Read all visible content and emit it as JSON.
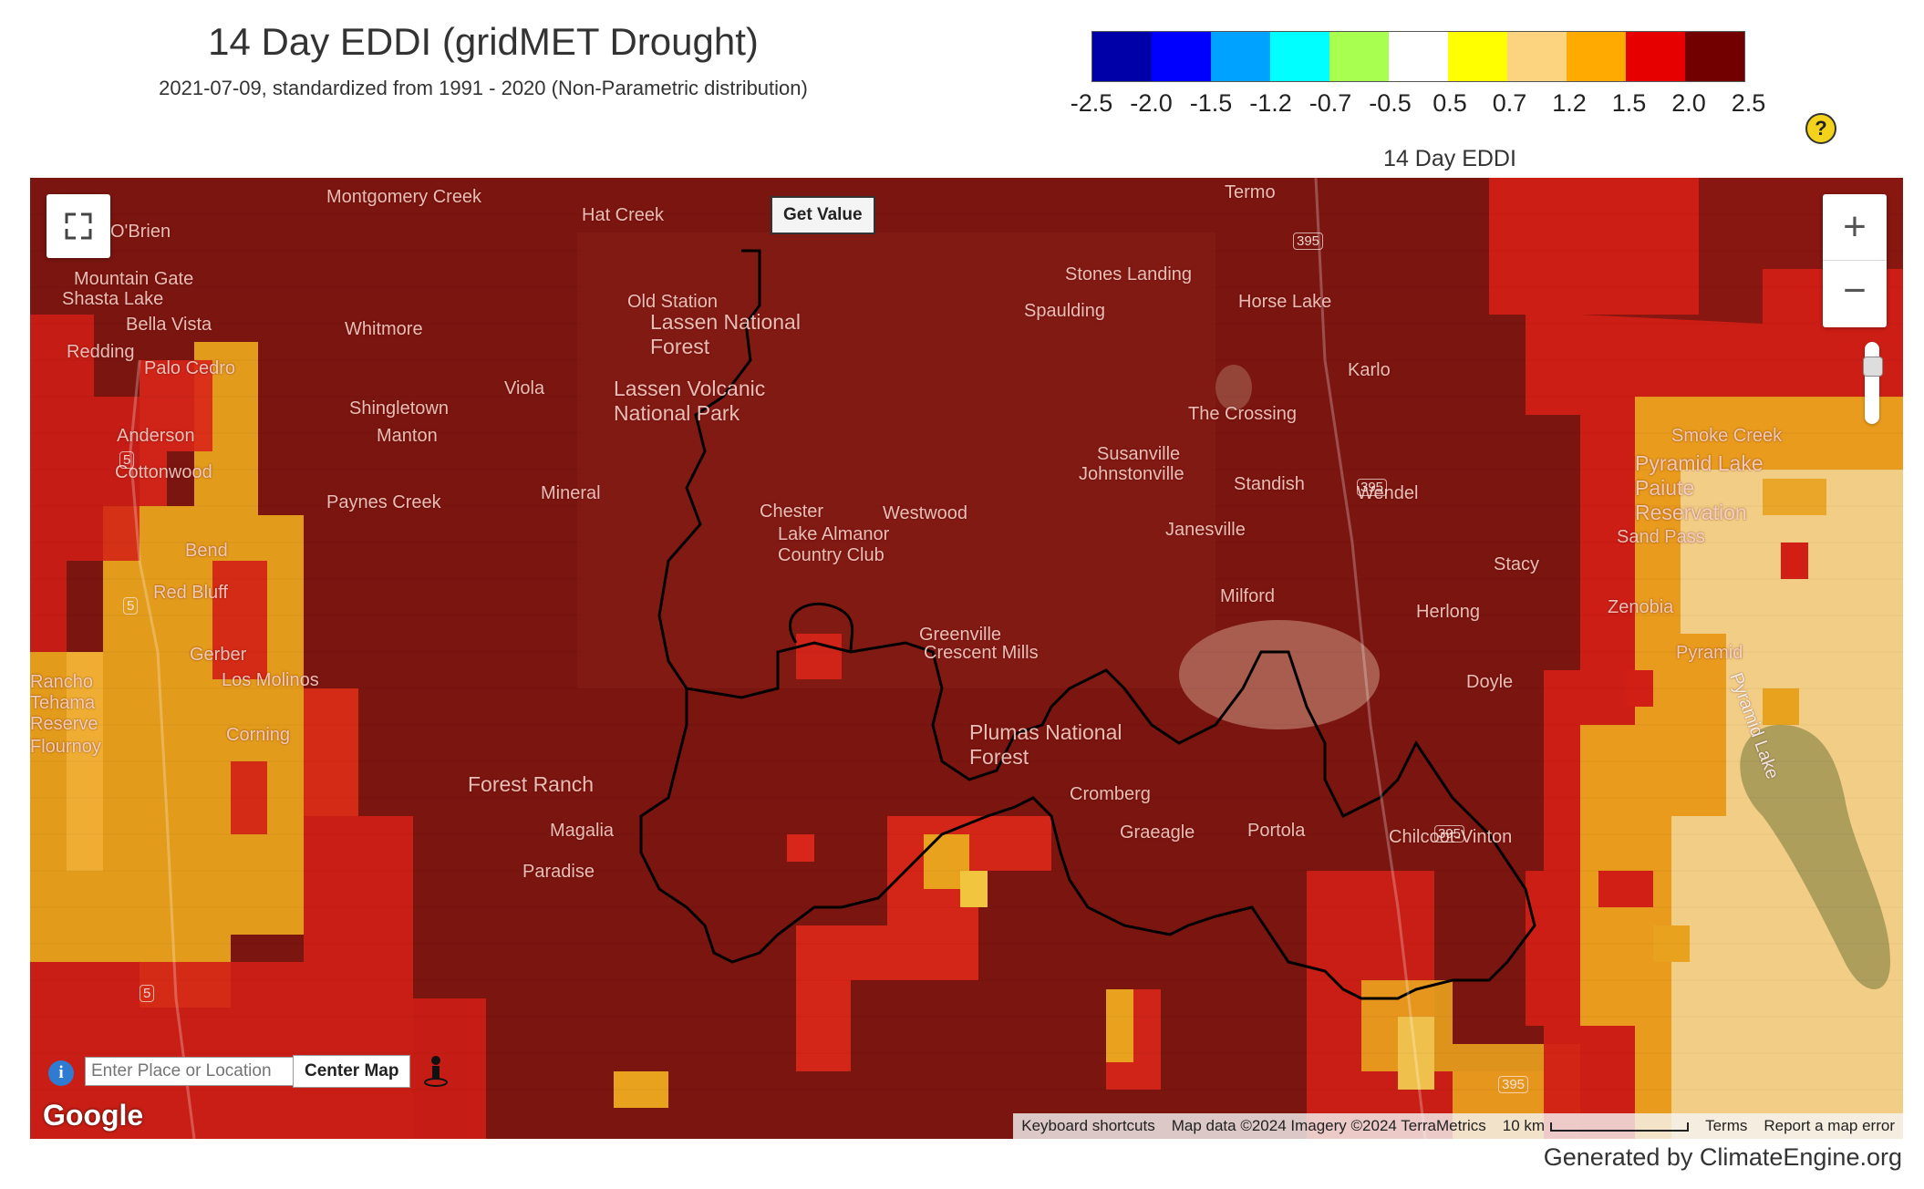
{
  "header": {
    "title": "14 Day EDDI (gridMET Drought)",
    "subtitle": "2021-07-09, standardized from 1991 - 2020 (Non-Parametric distribution)"
  },
  "legend": {
    "title": "14 Day EDDI",
    "colors": [
      "#0000a8",
      "#0000ff",
      "#00a2ff",
      "#00ffff",
      "#a8ff50",
      "#ffffff",
      "#ffff00",
      "#fcd37f",
      "#ffaa00",
      "#e60000",
      "#730000"
    ],
    "ticks": [
      "-2.5",
      "-2.0",
      "-1.5",
      "-1.2",
      "-0.7",
      "-0.5",
      "0.5",
      "0.7",
      "1.2",
      "1.5",
      "2.0",
      "2.5"
    ]
  },
  "map": {
    "get_value_label": "Get Value",
    "search_placeholder": "Enter Place or Location",
    "center_map_label": "Center Map",
    "google_logo": "Google",
    "attribution": {
      "shortcuts": "Keyboard shortcuts",
      "map_data": "Map data ©2024 Imagery ©2024 TerraMetrics",
      "scale": "10 km",
      "terms": "Terms",
      "report": "Report a map error"
    },
    "places": [
      "Montgomery Creek",
      "O'Brien",
      "Hat Creek",
      "Termo",
      "Mountain Gate",
      "Shasta Lake",
      "Bella Vista",
      "Whitmore",
      "Old Station",
      "Lassen National Forest",
      "Stones Landing",
      "Spaulding",
      "Horse Lake",
      "Redding",
      "Palo Cedro",
      "Lassen Volcanic National Park",
      "Karlo",
      "Viola",
      "Shingletown",
      "Anderson",
      "Manton",
      "The Crossing",
      "Susanville",
      "Johnstonville",
      "Smoke Creek",
      "Pyramid Lake Paiute Reservation",
      "Cottonwood",
      "Paynes Creek",
      "Mineral",
      "Standish",
      "Wendel",
      "Chester",
      "Westwood",
      "Lake Almanor Country Club",
      "Bend",
      "Janesville",
      "Sand Pass",
      "Stacy",
      "Red Bluff",
      "Milford",
      "Zenobia",
      "Herlong",
      "Greenville",
      "Crescent Mills",
      "Gerber",
      "Los Molinos",
      "Pyramid",
      "Rancho Tehama Reserve",
      "Doyle",
      "Pyramid Lake",
      "Corning",
      "Plumas National Forest",
      "Flournoy",
      "Forest Ranch",
      "Cromberg",
      "Magalia",
      "Portola",
      "Chilcoot-Vinton",
      "Paradise",
      "Graeagle"
    ],
    "highway_shields": [
      "5",
      "5",
      "5",
      "395",
      "395",
      "395",
      "395"
    ]
  },
  "footer": "Generated by ClimateEngine.org"
}
